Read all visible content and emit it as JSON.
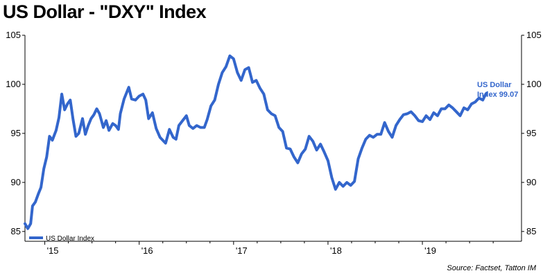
{
  "title": "US Dollar - \"DXY\" Index",
  "source": "Source: Factset, Tatton IM",
  "colors": {
    "series": "#3366CC",
    "axis": "#000000",
    "end_label": "#3366CC"
  },
  "chart_data": {
    "type": "line",
    "title": "US Dollar - \"DXY\" Index",
    "xlabel": "",
    "ylabel": "",
    "xlim": [
      2014.79,
      2020.05
    ],
    "ylim": [
      84,
      105
    ],
    "y_ticks": [
      85,
      90,
      95,
      100,
      105
    ],
    "x_ticks": [
      {
        "label": "'15",
        "value": 2015.0
      },
      {
        "label": "'16",
        "value": 2016.0
      },
      {
        "label": "'17",
        "value": 2017.0
      },
      {
        "label": "'18",
        "value": 2018.0
      },
      {
        "label": "'19",
        "value": 2019.0
      }
    ],
    "y_axes": [
      "left",
      "right"
    ],
    "grid": false,
    "legend": {
      "position": "bottom-left",
      "entries": [
        "US Dollar Index"
      ]
    },
    "end_label": {
      "line1": "US Dollar",
      "line2": "Index 99.07"
    },
    "series": [
      {
        "name": "US Dollar Index",
        "points": [
          [
            2014.79,
            85.8
          ],
          [
            2014.82,
            85.3
          ],
          [
            2014.85,
            85.8
          ],
          [
            2014.87,
            87.6
          ],
          [
            2014.9,
            88.0
          ],
          [
            2014.93,
            88.8
          ],
          [
            2014.96,
            89.5
          ],
          [
            2014.99,
            91.4
          ],
          [
            2015.02,
            92.6
          ],
          [
            2015.05,
            94.7
          ],
          [
            2015.08,
            94.3
          ],
          [
            2015.12,
            95.3
          ],
          [
            2015.15,
            96.6
          ],
          [
            2015.18,
            99.0
          ],
          [
            2015.21,
            97.4
          ],
          [
            2015.24,
            98.0
          ],
          [
            2015.27,
            98.4
          ],
          [
            2015.3,
            96.4
          ],
          [
            2015.33,
            94.7
          ],
          [
            2015.36,
            95.0
          ],
          [
            2015.4,
            96.5
          ],
          [
            2015.43,
            94.9
          ],
          [
            2015.46,
            95.8
          ],
          [
            2015.49,
            96.5
          ],
          [
            2015.52,
            96.9
          ],
          [
            2015.55,
            97.5
          ],
          [
            2015.58,
            97.0
          ],
          [
            2015.62,
            95.6
          ],
          [
            2015.65,
            96.3
          ],
          [
            2015.68,
            95.3
          ],
          [
            2015.72,
            96.0
          ],
          [
            2015.75,
            95.8
          ],
          [
            2015.78,
            95.4
          ],
          [
            2015.8,
            97.0
          ],
          [
            2015.84,
            98.5
          ],
          [
            2015.89,
            99.7
          ],
          [
            2015.92,
            98.5
          ],
          [
            2015.96,
            98.4
          ],
          [
            2016.0,
            98.8
          ],
          [
            2016.04,
            99.0
          ],
          [
            2016.07,
            98.4
          ],
          [
            2016.1,
            96.5
          ],
          [
            2016.14,
            97.1
          ],
          [
            2016.18,
            95.5
          ],
          [
            2016.22,
            94.6
          ],
          [
            2016.28,
            94.0
          ],
          [
            2016.32,
            95.4
          ],
          [
            2016.36,
            94.6
          ],
          [
            2016.39,
            94.4
          ],
          [
            2016.42,
            95.8
          ],
          [
            2016.46,
            96.3
          ],
          [
            2016.5,
            96.8
          ],
          [
            2016.53,
            95.8
          ],
          [
            2016.57,
            95.5
          ],
          [
            2016.61,
            95.8
          ],
          [
            2016.65,
            95.6
          ],
          [
            2016.69,
            95.6
          ],
          [
            2016.72,
            96.4
          ],
          [
            2016.76,
            97.8
          ],
          [
            2016.8,
            98.4
          ],
          [
            2016.84,
            100.0
          ],
          [
            2016.88,
            101.2
          ],
          [
            2016.92,
            101.8
          ],
          [
            2016.96,
            102.9
          ],
          [
            2017.0,
            102.6
          ],
          [
            2017.04,
            101.2
          ],
          [
            2017.08,
            100.4
          ],
          [
            2017.12,
            101.5
          ],
          [
            2017.16,
            101.7
          ],
          [
            2017.2,
            100.2
          ],
          [
            2017.24,
            100.4
          ],
          [
            2017.28,
            99.6
          ],
          [
            2017.32,
            99.0
          ],
          [
            2017.36,
            97.4
          ],
          [
            2017.4,
            97.0
          ],
          [
            2017.44,
            96.8
          ],
          [
            2017.48,
            95.6
          ],
          [
            2017.52,
            95.2
          ],
          [
            2017.56,
            93.5
          ],
          [
            2017.6,
            93.4
          ],
          [
            2017.64,
            92.6
          ],
          [
            2017.68,
            92.0
          ],
          [
            2017.72,
            92.9
          ],
          [
            2017.76,
            93.4
          ],
          [
            2017.8,
            94.7
          ],
          [
            2017.84,
            94.2
          ],
          [
            2017.88,
            93.3
          ],
          [
            2017.92,
            93.9
          ],
          [
            2017.96,
            93.1
          ],
          [
            2018.0,
            92.2
          ],
          [
            2018.04,
            90.5
          ],
          [
            2018.08,
            89.3
          ],
          [
            2018.12,
            90.0
          ],
          [
            2018.16,
            89.6
          ],
          [
            2018.2,
            90.0
          ],
          [
            2018.24,
            89.7
          ],
          [
            2018.28,
            90.1
          ],
          [
            2018.32,
            92.4
          ],
          [
            2018.36,
            93.5
          ],
          [
            2018.4,
            94.4
          ],
          [
            2018.44,
            94.8
          ],
          [
            2018.48,
            94.6
          ],
          [
            2018.52,
            94.9
          ],
          [
            2018.56,
            94.9
          ],
          [
            2018.6,
            96.1
          ],
          [
            2018.64,
            95.2
          ],
          [
            2018.68,
            94.6
          ],
          [
            2018.72,
            95.8
          ],
          [
            2018.76,
            96.4
          ],
          [
            2018.8,
            96.9
          ],
          [
            2018.84,
            97.0
          ],
          [
            2018.88,
            97.2
          ],
          [
            2018.92,
            96.8
          ],
          [
            2018.96,
            96.3
          ],
          [
            2019.0,
            96.2
          ],
          [
            2019.04,
            96.8
          ],
          [
            2019.08,
            96.4
          ],
          [
            2019.12,
            97.1
          ],
          [
            2019.16,
            96.8
          ],
          [
            2019.2,
            97.5
          ],
          [
            2019.24,
            97.5
          ],
          [
            2019.28,
            97.9
          ],
          [
            2019.32,
            97.6
          ],
          [
            2019.36,
            97.2
          ],
          [
            2019.4,
            96.8
          ],
          [
            2019.44,
            97.6
          ],
          [
            2019.48,
            97.4
          ],
          [
            2019.52,
            98.0
          ],
          [
            2019.56,
            98.2
          ],
          [
            2019.6,
            98.6
          ],
          [
            2019.64,
            98.4
          ],
          [
            2019.66,
            98.8
          ],
          [
            2019.68,
            99.1
          ]
        ]
      }
    ]
  }
}
